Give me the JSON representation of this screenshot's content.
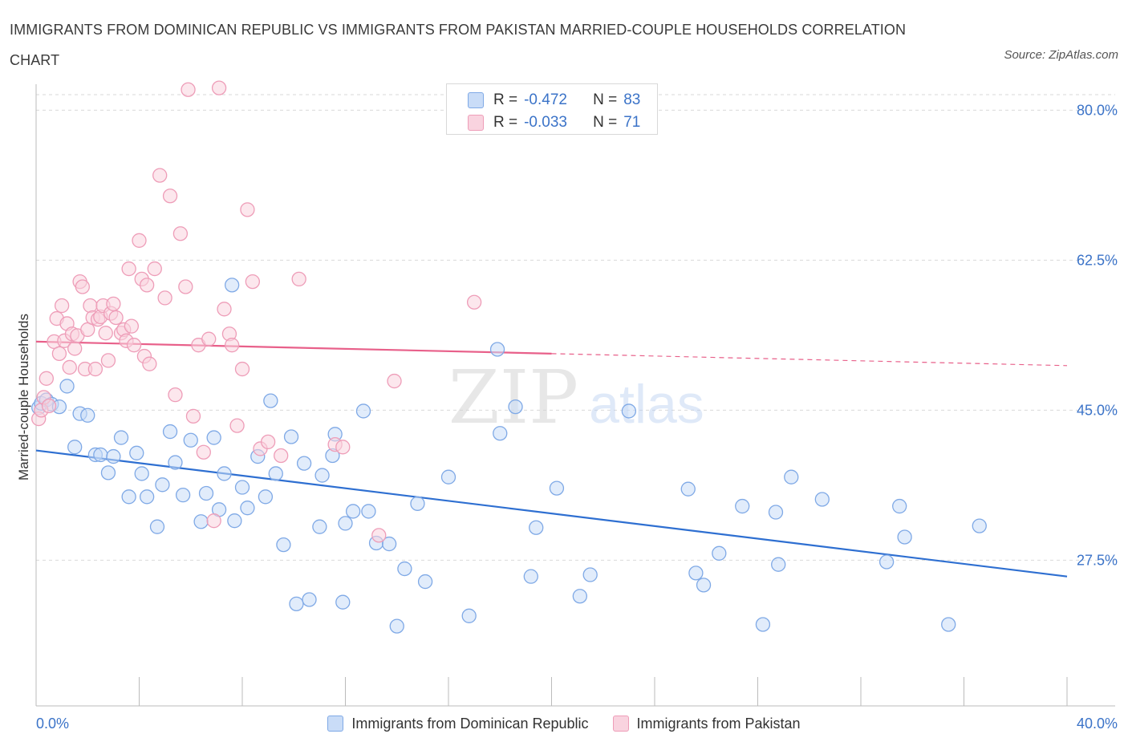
{
  "title": "IMMIGRANTS FROM DOMINICAN REPUBLIC VS IMMIGRANTS FROM PAKISTAN MARRIED-COUPLE HOUSEHOLDS CORRELATION CHART",
  "source": "Source: ZipAtlas.com",
  "watermark": {
    "zip": "ZIP",
    "atlas": "atlas"
  },
  "colors": {
    "blue_fill": "#c9dcf7",
    "blue_stroke": "#7fa9e6",
    "blue_line": "#2e6fd1",
    "pink_fill": "#f9d3df",
    "pink_stroke": "#ee9db8",
    "pink_line": "#e8608a",
    "grid": "#d9d9d9",
    "tick_label": "#3b73c8"
  },
  "stats_box": {
    "rows": [
      {
        "r_label": "R =",
        "r_value": "-0.472",
        "n_label": "N =",
        "n_value": "83",
        "color": "blue"
      },
      {
        "r_label": "R =",
        "r_value": "-0.033",
        "n_label": "N =",
        "n_value": "71",
        "color": "pink"
      }
    ]
  },
  "legend": [
    {
      "label": "Immigrants from Dominican Republic",
      "color": "blue"
    },
    {
      "label": "Immigrants from Pakistan",
      "color": "pink"
    }
  ],
  "chart_data": {
    "type": "scatter",
    "title": "IMMIGRANTS FROM DOMINICAN REPUBLIC VS IMMIGRANTS FROM PAKISTAN MARRIED-COUPLE HOUSEHOLDS CORRELATION CHART",
    "xlabel": "",
    "ylabel": "Married-couple Households",
    "xlim": [
      0,
      40
    ],
    "ylim": [
      10.5,
      83.5
    ],
    "x_tick_labels": [
      {
        "value": 0,
        "label": "0.0%"
      },
      {
        "value": 40,
        "label": "40.0%"
      }
    ],
    "y_ticks": [
      {
        "value": 80,
        "label": "80.0%"
      },
      {
        "value": 62.5,
        "label": "62.5%"
      },
      {
        "value": 45,
        "label": "45.0%"
      },
      {
        "value": 27.5,
        "label": "27.5%"
      }
    ],
    "x_minor_ticks": [
      0,
      4,
      8,
      12,
      16,
      20,
      24,
      28,
      32,
      36,
      40
    ],
    "grid": true,
    "legend_position": "bottom",
    "series": [
      {
        "name": "Immigrants from Dominican Republic",
        "color": "blue",
        "trend": {
          "x": [
            0,
            40
          ],
          "y": [
            40.3,
            25.6
          ],
          "dashed_from": null
        },
        "points": [
          [
            0.1,
            45.3
          ],
          [
            0.2,
            45.8
          ],
          [
            0.4,
            46.2
          ],
          [
            0.6,
            45.7
          ],
          [
            0.9,
            45.4
          ],
          [
            1.2,
            47.8
          ],
          [
            1.5,
            40.7
          ],
          [
            1.7,
            44.6
          ],
          [
            2.0,
            44.4
          ],
          [
            2.3,
            39.8
          ],
          [
            2.5,
            39.8
          ],
          [
            2.8,
            37.7
          ],
          [
            3.0,
            39.6
          ],
          [
            3.3,
            41.8
          ],
          [
            3.6,
            34.9
          ],
          [
            3.9,
            40.0
          ],
          [
            4.1,
            37.6
          ],
          [
            4.3,
            34.9
          ],
          [
            4.7,
            31.4
          ],
          [
            4.9,
            36.3
          ],
          [
            5.2,
            42.5
          ],
          [
            5.4,
            38.9
          ],
          [
            5.7,
            35.1
          ],
          [
            6.0,
            41.5
          ],
          [
            6.4,
            32.0
          ],
          [
            6.6,
            35.3
          ],
          [
            6.9,
            41.8
          ],
          [
            7.1,
            33.4
          ],
          [
            7.3,
            37.6
          ],
          [
            7.7,
            32.1
          ],
          [
            7.6,
            59.6
          ],
          [
            8.0,
            36.0
          ],
          [
            8.2,
            33.6
          ],
          [
            8.6,
            39.6
          ],
          [
            8.9,
            34.9
          ],
          [
            9.1,
            46.1
          ],
          [
            9.3,
            37.6
          ],
          [
            9.6,
            29.3
          ],
          [
            9.9,
            41.9
          ],
          [
            10.1,
            22.4
          ],
          [
            10.4,
            38.8
          ],
          [
            10.6,
            22.9
          ],
          [
            11.0,
            31.4
          ],
          [
            11.1,
            37.4
          ],
          [
            11.5,
            39.7
          ],
          [
            11.6,
            42.2
          ],
          [
            11.9,
            22.6
          ],
          [
            12.0,
            31.8
          ],
          [
            12.3,
            33.2
          ],
          [
            12.7,
            44.9
          ],
          [
            12.9,
            33.2
          ],
          [
            13.2,
            29.5
          ],
          [
            13.7,
            29.4
          ],
          [
            14.0,
            19.8
          ],
          [
            14.3,
            26.5
          ],
          [
            14.8,
            34.1
          ],
          [
            15.1,
            25.0
          ],
          [
            16.0,
            37.2
          ],
          [
            16.8,
            21.0
          ],
          [
            17.9,
            52.1
          ],
          [
            18.0,
            42.3
          ],
          [
            18.6,
            45.4
          ],
          [
            19.4,
            31.3
          ],
          [
            19.2,
            25.6
          ],
          [
            20.2,
            35.9
          ],
          [
            21.1,
            23.3
          ],
          [
            21.5,
            25.8
          ],
          [
            23.0,
            44.9
          ],
          [
            25.3,
            35.8
          ],
          [
            25.6,
            26.0
          ],
          [
            25.9,
            24.6
          ],
          [
            26.5,
            28.3
          ],
          [
            27.4,
            33.8
          ],
          [
            28.2,
            20.0
          ],
          [
            28.7,
            33.1
          ],
          [
            28.8,
            27.0
          ],
          [
            29.3,
            37.2
          ],
          [
            30.5,
            34.6
          ],
          [
            33.0,
            27.3
          ],
          [
            33.5,
            33.8
          ],
          [
            33.7,
            30.2
          ],
          [
            35.4,
            20.0
          ],
          [
            36.6,
            31.5
          ]
        ]
      },
      {
        "name": "Immigrants from Pakistan",
        "color": "pink",
        "trend": {
          "x": [
            0,
            40
          ],
          "y": [
            53.0,
            50.2
          ],
          "dashed_from": 20
        },
        "points": [
          [
            0.1,
            44.0
          ],
          [
            0.2,
            45.0
          ],
          [
            0.3,
            46.5
          ],
          [
            0.4,
            48.7
          ],
          [
            0.5,
            45.5
          ],
          [
            0.7,
            53.0
          ],
          [
            0.8,
            55.7
          ],
          [
            0.9,
            51.6
          ],
          [
            1.0,
            57.2
          ],
          [
            1.1,
            53.1
          ],
          [
            1.2,
            55.1
          ],
          [
            1.3,
            50.0
          ],
          [
            1.4,
            53.9
          ],
          [
            1.5,
            52.2
          ],
          [
            1.6,
            53.7
          ],
          [
            1.7,
            60.0
          ],
          [
            1.8,
            59.4
          ],
          [
            1.9,
            49.8
          ],
          [
            2.0,
            54.4
          ],
          [
            2.1,
            57.2
          ],
          [
            2.2,
            55.8
          ],
          [
            2.3,
            49.8
          ],
          [
            2.4,
            55.6
          ],
          [
            2.5,
            55.9
          ],
          [
            2.6,
            57.2
          ],
          [
            2.7,
            54.0
          ],
          [
            2.8,
            50.8
          ],
          [
            2.9,
            56.3
          ],
          [
            3.0,
            57.4
          ],
          [
            3.1,
            55.8
          ],
          [
            3.3,
            54.0
          ],
          [
            3.4,
            54.4
          ],
          [
            3.5,
            53.1
          ],
          [
            3.6,
            61.5
          ],
          [
            3.7,
            54.8
          ],
          [
            3.8,
            52.6
          ],
          [
            4.0,
            64.8
          ],
          [
            4.1,
            60.3
          ],
          [
            4.2,
            51.3
          ],
          [
            4.3,
            59.6
          ],
          [
            4.4,
            50.4
          ],
          [
            4.6,
            61.5
          ],
          [
            4.8,
            72.4
          ],
          [
            5.0,
            58.1
          ],
          [
            5.2,
            70.0
          ],
          [
            5.4,
            46.8
          ],
          [
            5.6,
            65.6
          ],
          [
            5.8,
            59.4
          ],
          [
            5.9,
            82.4
          ],
          [
            6.1,
            44.3
          ],
          [
            6.3,
            52.6
          ],
          [
            6.5,
            40.1
          ],
          [
            6.7,
            53.3
          ],
          [
            6.9,
            32.1
          ],
          [
            7.1,
            82.6
          ],
          [
            7.3,
            56.8
          ],
          [
            7.5,
            53.9
          ],
          [
            7.6,
            52.6
          ],
          [
            7.8,
            43.2
          ],
          [
            8.0,
            49.8
          ],
          [
            8.2,
            68.4
          ],
          [
            8.4,
            60.0
          ],
          [
            8.7,
            40.5
          ],
          [
            9.0,
            41.3
          ],
          [
            9.5,
            39.7
          ],
          [
            10.2,
            60.3
          ],
          [
            11.6,
            41.0
          ],
          [
            11.9,
            40.7
          ],
          [
            13.3,
            30.4
          ],
          [
            13.9,
            48.4
          ],
          [
            17.0,
            57.6
          ]
        ]
      }
    ]
  }
}
